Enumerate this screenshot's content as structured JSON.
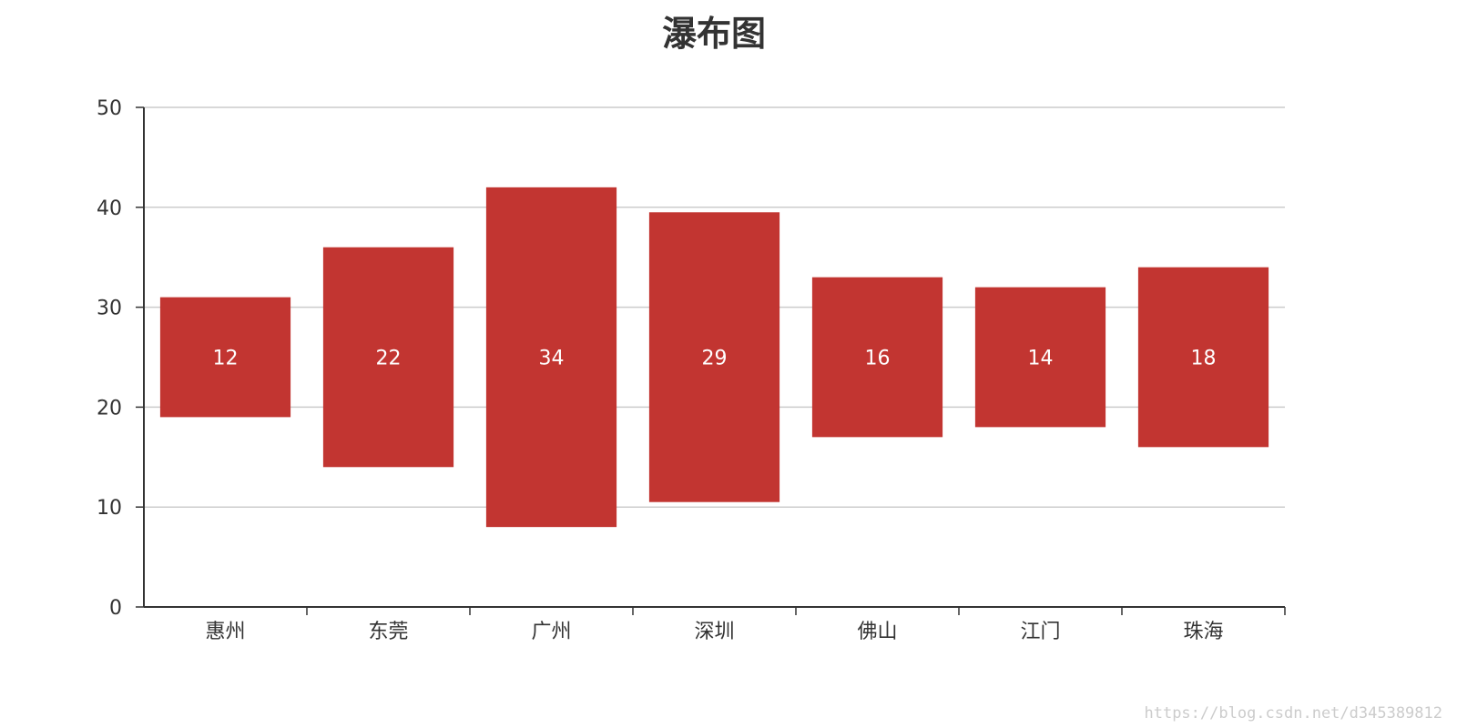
{
  "chart_data": {
    "type": "bar",
    "subtype": "waterfall-floating",
    "title": "瀑布图",
    "categories": [
      "惠州",
      "东莞",
      "广州",
      "深圳",
      "佛山",
      "江门",
      "珠海"
    ],
    "series": [
      {
        "base": [
          19,
          14,
          8,
          10.5,
          17,
          18,
          16
        ],
        "values": [
          12,
          22,
          34,
          29,
          16,
          14,
          18
        ]
      }
    ],
    "ylim": [
      0,
      50
    ],
    "yticks": [
      0,
      10,
      20,
      30,
      40,
      50
    ],
    "grid": true,
    "xlabel": "",
    "ylabel": "",
    "colors": {
      "bar": "#c23531",
      "grid": "#cccccc",
      "axis": "#333333"
    }
  },
  "watermark": "https://blog.csdn.net/d345389812"
}
